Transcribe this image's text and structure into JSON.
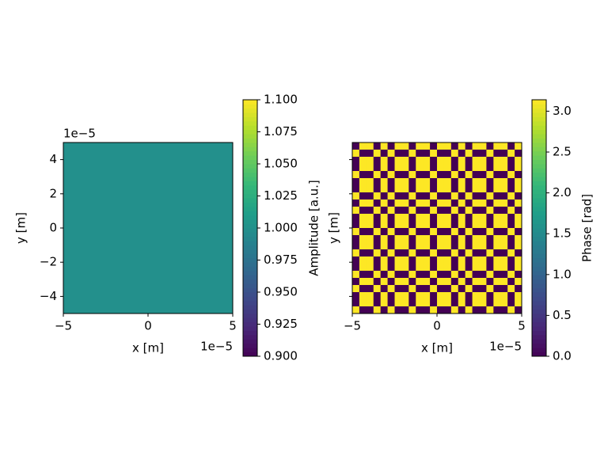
{
  "chart_data": [
    {
      "type": "heatmap",
      "xlabel": "x [m]",
      "ylabel": "y [m]",
      "x_offset": "1e−5",
      "y_offset": "1e−5",
      "xlim": [
        -5e-05,
        5e-05
      ],
      "ylim": [
        -5e-05,
        5e-05
      ],
      "xticks": [
        {
          "value": -5e-05,
          "label": "−5"
        },
        0,
        {
          "value": 5e-05,
          "label": "5"
        }
      ],
      "yticks": [
        {
          "value": -4e-05,
          "label": "−4"
        },
        {
          "value": -2e-05,
          "label": "−2"
        },
        0,
        {
          "value": 2e-05,
          "label": "2"
        },
        {
          "value": 4e-05,
          "label": "4"
        }
      ],
      "ytick_labels": true,
      "colormap": "viridis",
      "z": [
        [
          1.0
        ]
      ],
      "colorbar": {
        "label": "Amplitude [a.u.]",
        "lim": [
          0.9,
          1.1
        ],
        "ticks": [
          {
            "value": 0.9,
            "label": "0.900"
          },
          {
            "value": 0.925,
            "label": "0.925"
          },
          {
            "value": 0.95,
            "label": "0.950"
          },
          {
            "value": 0.975,
            "label": "0.975"
          },
          {
            "value": 1.0,
            "label": "1.000"
          },
          {
            "value": 1.025,
            "label": "1.025"
          },
          {
            "value": 1.05,
            "label": "1.050"
          },
          {
            "value": 1.075,
            "label": "1.075"
          },
          {
            "value": 1.1,
            "label": "1.100"
          }
        ]
      }
    },
    {
      "type": "heatmap",
      "xlabel": "x [m]",
      "ylabel": "y [m]",
      "x_offset": "1e−5",
      "xlim": [
        -5e-05,
        5e-05
      ],
      "ylim": [
        -5e-05,
        5e-05
      ],
      "xticks": [
        {
          "value": -5e-05,
          "label": "−5"
        },
        0,
        {
          "value": 5e-05,
          "label": "5"
        }
      ],
      "yticks": [
        -4e-05,
        -2e-05,
        0,
        2e-05,
        4e-05
      ],
      "ytick_labels": false,
      "colormap": "viridis",
      "z": [
        [
          0,
          3.14,
          3.14,
          0,
          3.14,
          0,
          3.14,
          3.14,
          0,
          3.14,
          3.14,
          0,
          3.14,
          3.14,
          0,
          3.14,
          0,
          3.14,
          3.14,
          0,
          3.14,
          3.14,
          0,
          3.14
        ],
        [
          3.14,
          0,
          0,
          3.14,
          0,
          3.14,
          0,
          0,
          3.14,
          0,
          0,
          3.14,
          0,
          0,
          3.14,
          0,
          3.14,
          0,
          0,
          3.14,
          0,
          0,
          3.14,
          0
        ],
        [
          0,
          3.14,
          3.14,
          0,
          3.14,
          0,
          3.14,
          3.14,
          0,
          3.14,
          3.14,
          0,
          3.14,
          3.14,
          0,
          3.14,
          0,
          3.14,
          3.14,
          0,
          3.14,
          3.14,
          0,
          3.14
        ],
        [
          0,
          3.14,
          3.14,
          0,
          3.14,
          0,
          3.14,
          3.14,
          0,
          3.14,
          3.14,
          0,
          3.14,
          3.14,
          0,
          3.14,
          0,
          3.14,
          3.14,
          0,
          3.14,
          3.14,
          0,
          3.14
        ],
        [
          3.14,
          0,
          0,
          3.14,
          0,
          3.14,
          0,
          0,
          3.14,
          0,
          0,
          3.14,
          0,
          0,
          3.14,
          0,
          3.14,
          0,
          0,
          3.14,
          0,
          0,
          3.14,
          0
        ],
        [
          0,
          3.14,
          3.14,
          0,
          3.14,
          0,
          3.14,
          3.14,
          0,
          3.14,
          3.14,
          0,
          3.14,
          3.14,
          0,
          3.14,
          0,
          3.14,
          3.14,
          0,
          3.14,
          3.14,
          0,
          3.14
        ],
        [
          0,
          3.14,
          3.14,
          0,
          3.14,
          0,
          3.14,
          3.14,
          0,
          3.14,
          3.14,
          0,
          3.14,
          3.14,
          0,
          3.14,
          0,
          3.14,
          3.14,
          0,
          3.14,
          3.14,
          0,
          3.14
        ],
        [
          3.14,
          0,
          0,
          3.14,
          0,
          3.14,
          0,
          0,
          3.14,
          0,
          0,
          3.14,
          0,
          0,
          3.14,
          0,
          3.14,
          0,
          0,
          3.14,
          0,
          0,
          3.14,
          0
        ],
        [
          0,
          3.14,
          3.14,
          0,
          3.14,
          0,
          3.14,
          3.14,
          0,
          3.14,
          3.14,
          0,
          3.14,
          3.14,
          0,
          3.14,
          0,
          3.14,
          3.14,
          0,
          3.14,
          3.14,
          0,
          3.14
        ],
        [
          3.14,
          0,
          0,
          3.14,
          0,
          3.14,
          0,
          0,
          3.14,
          0,
          0,
          3.14,
          0,
          0,
          3.14,
          0,
          3.14,
          0,
          0,
          3.14,
          0,
          0,
          3.14,
          0
        ],
        [
          0,
          3.14,
          3.14,
          0,
          3.14,
          0,
          3.14,
          3.14,
          0,
          3.14,
          3.14,
          0,
          3.14,
          3.14,
          0,
          3.14,
          0,
          3.14,
          3.14,
          0,
          3.14,
          3.14,
          0,
          3.14
        ],
        [
          0,
          3.14,
          3.14,
          0,
          3.14,
          0,
          3.14,
          3.14,
          0,
          3.14,
          3.14,
          0,
          3.14,
          3.14,
          0,
          3.14,
          0,
          3.14,
          3.14,
          0,
          3.14,
          3.14,
          0,
          3.14
        ],
        [
          3.14,
          0,
          0,
          3.14,
          0,
          3.14,
          0,
          0,
          3.14,
          0,
          0,
          3.14,
          0,
          0,
          3.14,
          0,
          3.14,
          0,
          0,
          3.14,
          0,
          0,
          3.14,
          0
        ],
        [
          0,
          3.14,
          3.14,
          0,
          3.14,
          0,
          3.14,
          3.14,
          0,
          3.14,
          3.14,
          0,
          3.14,
          3.14,
          0,
          3.14,
          0,
          3.14,
          3.14,
          0,
          3.14,
          3.14,
          0,
          3.14
        ],
        [
          0,
          3.14,
          3.14,
          0,
          3.14,
          0,
          3.14,
          3.14,
          0,
          3.14,
          3.14,
          0,
          3.14,
          3.14,
          0,
          3.14,
          0,
          3.14,
          3.14,
          0,
          3.14,
          3.14,
          0,
          3.14
        ],
        [
          3.14,
          0,
          0,
          3.14,
          0,
          3.14,
          0,
          0,
          3.14,
          0,
          0,
          3.14,
          0,
          0,
          3.14,
          0,
          3.14,
          0,
          0,
          3.14,
          0,
          0,
          3.14,
          0
        ],
        [
          0,
          3.14,
          3.14,
          0,
          3.14,
          0,
          3.14,
          3.14,
          0,
          3.14,
          3.14,
          0,
          3.14,
          3.14,
          0,
          3.14,
          0,
          3.14,
          3.14,
          0,
          3.14,
          3.14,
          0,
          3.14
        ],
        [
          0,
          3.14,
          3.14,
          0,
          3.14,
          0,
          3.14,
          3.14,
          0,
          3.14,
          3.14,
          0,
          3.14,
          3.14,
          0,
          3.14,
          0,
          3.14,
          3.14,
          0,
          3.14,
          3.14,
          0,
          3.14
        ],
        [
          3.14,
          0,
          0,
          3.14,
          0,
          3.14,
          0,
          0,
          3.14,
          0,
          0,
          3.14,
          0,
          0,
          3.14,
          0,
          3.14,
          0,
          0,
          3.14,
          0,
          0,
          3.14,
          0
        ],
        [
          0,
          3.14,
          3.14,
          0,
          3.14,
          0,
          3.14,
          3.14,
          0,
          3.14,
          3.14,
          0,
          3.14,
          3.14,
          0,
          3.14,
          0,
          3.14,
          3.14,
          0,
          3.14,
          3.14,
          0,
          3.14
        ],
        [
          3.14,
          0,
          0,
          3.14,
          0,
          3.14,
          0,
          0,
          3.14,
          0,
          0,
          3.14,
          0,
          0,
          3.14,
          0,
          3.14,
          0,
          0,
          3.14,
          0,
          0,
          3.14,
          0
        ],
        [
          0,
          3.14,
          3.14,
          0,
          3.14,
          0,
          3.14,
          3.14,
          0,
          3.14,
          3.14,
          0,
          3.14,
          3.14,
          0,
          3.14,
          0,
          3.14,
          3.14,
          0,
          3.14,
          3.14,
          0,
          3.14
        ],
        [
          0,
          3.14,
          3.14,
          0,
          3.14,
          0,
          3.14,
          3.14,
          0,
          3.14,
          3.14,
          0,
          3.14,
          3.14,
          0,
          3.14,
          0,
          3.14,
          3.14,
          0,
          3.14,
          3.14,
          0,
          3.14
        ],
        [
          3.14,
          0,
          0,
          3.14,
          0,
          3.14,
          0,
          0,
          3.14,
          0,
          0,
          3.14,
          0,
          0,
          3.14,
          0,
          3.14,
          0,
          0,
          3.14,
          0,
          0,
          3.14,
          0
        ]
      ],
      "colorbar": {
        "label": "Phase [rad]",
        "lim": [
          0,
          3.14
        ],
        "ticks": [
          {
            "value": 0,
            "label": "0.0"
          },
          {
            "value": 0.5,
            "label": "0.5"
          },
          {
            "value": 1,
            "label": "1.0"
          },
          {
            "value": 1.5,
            "label": "1.5"
          },
          {
            "value": 2,
            "label": "2.0"
          },
          {
            "value": 2.5,
            "label": "2.5"
          },
          {
            "value": 3,
            "label": "3.0"
          }
        ]
      }
    }
  ]
}
